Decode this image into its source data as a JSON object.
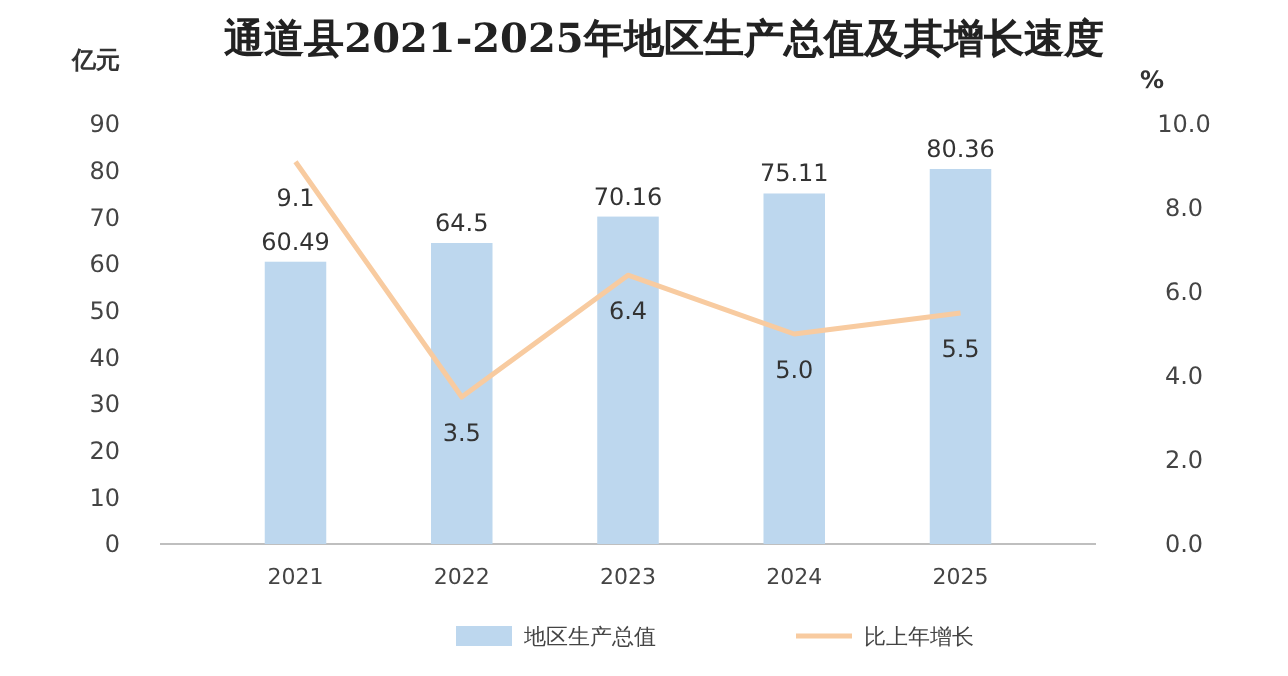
{
  "chart_data": {
    "type": "bar",
    "title": "通道县2021-2025年地区生产总值及其增长速度",
    "ylabel": "亿元",
    "y2label": "%",
    "categories": [
      "2021",
      "2022",
      "2023",
      "2024",
      "2025"
    ],
    "series": [
      {
        "name": "地区生产总值",
        "color": "#bdd7ee",
        "values": [
          60.49,
          64.5,
          70.16,
          75.11,
          80.36
        ],
        "value_labels": [
          "60.49",
          "64.5",
          "70.16",
          "75.11",
          "80.36"
        ]
      },
      {
        "name": "比上年增长",
        "type": "line",
        "axis": "y2",
        "color": "#f8cba0",
        "values": [
          9.1,
          3.5,
          6.4,
          5.0,
          5.5
        ],
        "value_labels": [
          "9.1",
          "3.5",
          "6.4",
          "5.0",
          "5.5"
        ]
      }
    ],
    "ylim": [
      0,
      90
    ],
    "yticks": [
      0,
      10,
      20,
      30,
      40,
      50,
      60,
      70,
      80,
      90
    ],
    "y2lim": [
      0,
      10
    ],
    "y2ticks": [
      {
        "value": 0,
        "label": "0.0"
      },
      {
        "value": 2,
        "label": "2.0"
      },
      {
        "value": 4,
        "label": "4.0"
      },
      {
        "value": 6,
        "label": "6.0"
      },
      {
        "value": 8,
        "label": "8.0"
      },
      {
        "value": 10,
        "label": "10.0"
      }
    ],
    "grid": false,
    "legend": "bottom",
    "marker": "none",
    "line_style": "solid"
  }
}
